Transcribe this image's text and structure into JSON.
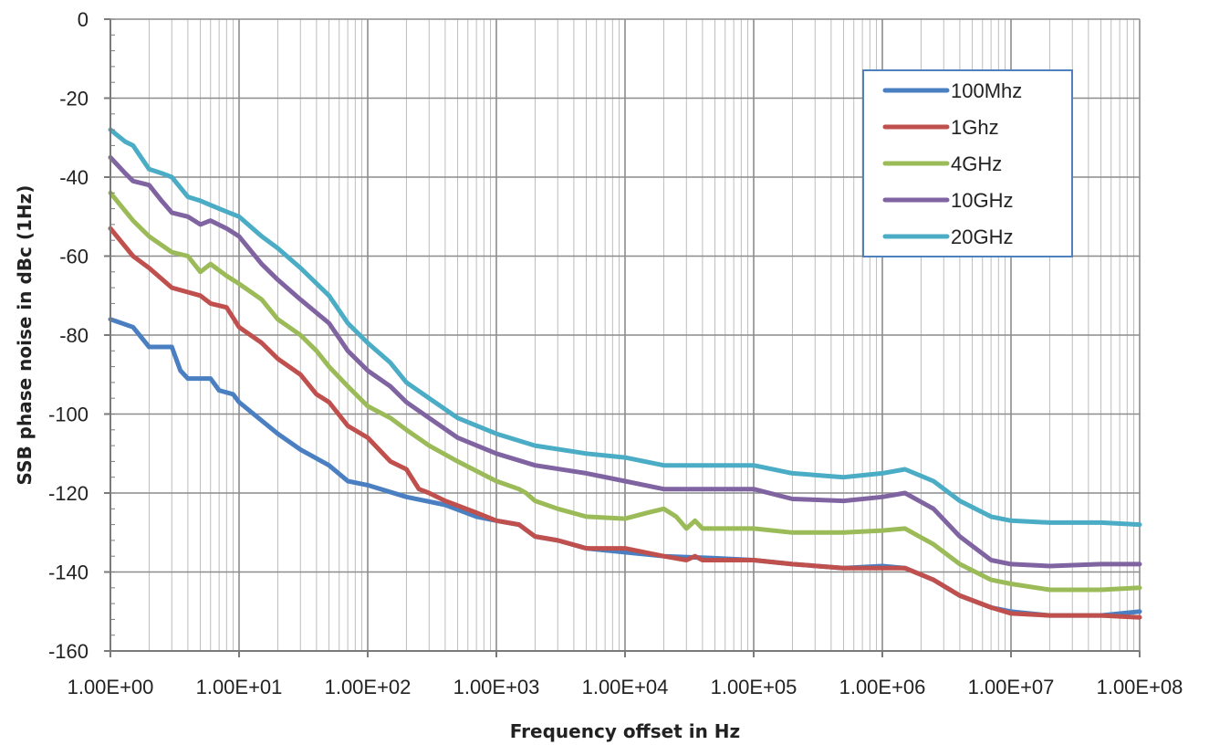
{
  "chart_data": {
    "type": "line",
    "title": "",
    "xlabel": "Frequency offset in Hz",
    "ylabel": "SSB phase noise in dBc  (1Hz)",
    "x_scale": "log",
    "xlim": [
      1,
      100000000
    ],
    "ylim": [
      -160,
      0
    ],
    "x_ticks": [
      1,
      10,
      100,
      1000,
      10000,
      100000,
      1000000,
      10000000,
      100000000
    ],
    "x_tick_labels": [
      "1.00E+00",
      "1.00E+01",
      "1.00E+02",
      "1.00E+03",
      "1.00E+04",
      "1.00E+05",
      "1.00E+06",
      "1.00E+07",
      "1.00E+08"
    ],
    "y_ticks": [
      0,
      -20,
      -40,
      -60,
      -80,
      -100,
      -120,
      -140,
      -160
    ],
    "y_tick_labels": [
      "0",
      "-20",
      "-40",
      "-60",
      "-80",
      "-100",
      "-120",
      "-140",
      "-160"
    ],
    "grid": true,
    "minor_grid": true,
    "legend_position": "top-right",
    "series": [
      {
        "name": "100Mhz",
        "color": "#4a7fc1",
        "points": [
          [
            1,
            -76
          ],
          [
            1.5,
            -78
          ],
          [
            2,
            -83
          ],
          [
            3,
            -83
          ],
          [
            3.5,
            -89
          ],
          [
            4,
            -91
          ],
          [
            6,
            -91
          ],
          [
            7,
            -94
          ],
          [
            9,
            -95
          ],
          [
            10,
            -97
          ],
          [
            20,
            -105
          ],
          [
            30,
            -109
          ],
          [
            50,
            -113
          ],
          [
            70,
            -117
          ],
          [
            100,
            -118
          ],
          [
            200,
            -121
          ],
          [
            400,
            -123
          ],
          [
            700,
            -126
          ],
          [
            1000,
            -127
          ],
          [
            1500,
            -128
          ],
          [
            2000,
            -131
          ],
          [
            3000,
            -132
          ],
          [
            5000,
            -134
          ],
          [
            10000,
            -135
          ],
          [
            20000,
            -136
          ],
          [
            50000,
            -136.5
          ],
          [
            100000,
            -137
          ],
          [
            200000,
            -138
          ],
          [
            500000,
            -139
          ],
          [
            1000000,
            -138.5
          ],
          [
            1500000,
            -139
          ],
          [
            2500000,
            -142
          ],
          [
            4000000,
            -146
          ],
          [
            7000000,
            -149
          ],
          [
            10000000,
            -150
          ],
          [
            20000000,
            -151
          ],
          [
            50000000,
            -151
          ],
          [
            100000000,
            -150
          ]
        ]
      },
      {
        "name": "1Ghz",
        "color": "#c0504d",
        "points": [
          [
            1,
            -53
          ],
          [
            1.5,
            -60
          ],
          [
            2,
            -63
          ],
          [
            3,
            -68
          ],
          [
            5,
            -70
          ],
          [
            6,
            -72
          ],
          [
            8,
            -73
          ],
          [
            10,
            -78
          ],
          [
            15,
            -82
          ],
          [
            20,
            -86
          ],
          [
            30,
            -90
          ],
          [
            40,
            -95
          ],
          [
            50,
            -97
          ],
          [
            70,
            -103
          ],
          [
            100,
            -106
          ],
          [
            150,
            -112
          ],
          [
            200,
            -114
          ],
          [
            250,
            -119
          ],
          [
            300,
            -120
          ],
          [
            400,
            -122
          ],
          [
            700,
            -125
          ],
          [
            1000,
            -127
          ],
          [
            1500,
            -128
          ],
          [
            2000,
            -131
          ],
          [
            3000,
            -132
          ],
          [
            5000,
            -134
          ],
          [
            10000,
            -134
          ],
          [
            20000,
            -136
          ],
          [
            30000,
            -137
          ],
          [
            35000,
            -136
          ],
          [
            40000,
            -137
          ],
          [
            100000,
            -137
          ],
          [
            200000,
            -138
          ],
          [
            500000,
            -139
          ],
          [
            1000000,
            -139
          ],
          [
            1500000,
            -139
          ],
          [
            2500000,
            -142
          ],
          [
            4000000,
            -146
          ],
          [
            7000000,
            -149
          ],
          [
            10000000,
            -150.5
          ],
          [
            20000000,
            -151
          ],
          [
            50000000,
            -151
          ],
          [
            100000000,
            -151.5
          ]
        ]
      },
      {
        "name": "4GHz",
        "color": "#9bbb59",
        "points": [
          [
            1,
            -44
          ],
          [
            1.5,
            -51
          ],
          [
            2,
            -55
          ],
          [
            3,
            -59
          ],
          [
            4,
            -60
          ],
          [
            5,
            -64
          ],
          [
            6,
            -62
          ],
          [
            8,
            -65
          ],
          [
            10,
            -67
          ],
          [
            15,
            -71
          ],
          [
            20,
            -76
          ],
          [
            30,
            -80
          ],
          [
            40,
            -84
          ],
          [
            50,
            -88
          ],
          [
            70,
            -93
          ],
          [
            100,
            -98
          ],
          [
            150,
            -101
          ],
          [
            200,
            -104
          ],
          [
            300,
            -108
          ],
          [
            500,
            -112
          ],
          [
            1000,
            -117
          ],
          [
            1500,
            -119
          ],
          [
            1700,
            -120
          ],
          [
            2000,
            -122
          ],
          [
            3000,
            -124
          ],
          [
            5000,
            -126
          ],
          [
            10000,
            -126.5
          ],
          [
            15000,
            -125
          ],
          [
            20000,
            -124
          ],
          [
            25000,
            -126
          ],
          [
            30000,
            -129
          ],
          [
            35000,
            -127
          ],
          [
            40000,
            -129
          ],
          [
            100000,
            -129
          ],
          [
            200000,
            -130
          ],
          [
            500000,
            -130
          ],
          [
            1000000,
            -129.5
          ],
          [
            1500000,
            -129
          ],
          [
            2500000,
            -133
          ],
          [
            4000000,
            -138
          ],
          [
            7000000,
            -142
          ],
          [
            10000000,
            -143
          ],
          [
            20000000,
            -144.5
          ],
          [
            50000000,
            -144.5
          ],
          [
            100000000,
            -144
          ]
        ]
      },
      {
        "name": "10GHz",
        "color": "#8064a2",
        "points": [
          [
            1,
            -35
          ],
          [
            1.3,
            -39
          ],
          [
            1.5,
            -41
          ],
          [
            2,
            -42
          ],
          [
            2.5,
            -46
          ],
          [
            3,
            -49
          ],
          [
            4,
            -50
          ],
          [
            5,
            -52
          ],
          [
            6,
            -51
          ],
          [
            8,
            -53
          ],
          [
            10,
            -55
          ],
          [
            15,
            -62
          ],
          [
            20,
            -66
          ],
          [
            30,
            -71
          ],
          [
            50,
            -77
          ],
          [
            70,
            -84
          ],
          [
            100,
            -89
          ],
          [
            150,
            -93
          ],
          [
            200,
            -97
          ],
          [
            300,
            -101
          ],
          [
            500,
            -106
          ],
          [
            1000,
            -110
          ],
          [
            2000,
            -113
          ],
          [
            5000,
            -115
          ],
          [
            10000,
            -117
          ],
          [
            20000,
            -119
          ],
          [
            50000,
            -119
          ],
          [
            100000,
            -119
          ],
          [
            200000,
            -121.5
          ],
          [
            500000,
            -122
          ],
          [
            1000000,
            -121
          ],
          [
            1500000,
            -120
          ],
          [
            2500000,
            -124
          ],
          [
            4000000,
            -131
          ],
          [
            7000000,
            -137
          ],
          [
            10000000,
            -138
          ],
          [
            20000000,
            -138.5
          ],
          [
            50000000,
            -138
          ],
          [
            100000000,
            -138
          ]
        ]
      },
      {
        "name": "20GHz",
        "color": "#4bacc6",
        "points": [
          [
            1,
            -28
          ],
          [
            1.3,
            -31
          ],
          [
            1.5,
            -32
          ],
          [
            2,
            -38
          ],
          [
            2.5,
            -39
          ],
          [
            3,
            -40
          ],
          [
            4,
            -45
          ],
          [
            5,
            -46
          ],
          [
            7,
            -48
          ],
          [
            10,
            -50
          ],
          [
            15,
            -55
          ],
          [
            20,
            -58
          ],
          [
            30,
            -63
          ],
          [
            50,
            -70
          ],
          [
            70,
            -77
          ],
          [
            100,
            -82
          ],
          [
            150,
            -87
          ],
          [
            200,
            -92
          ],
          [
            300,
            -96
          ],
          [
            500,
            -101
          ],
          [
            1000,
            -105
          ],
          [
            2000,
            -108
          ],
          [
            5000,
            -110
          ],
          [
            10000,
            -111
          ],
          [
            20000,
            -113
          ],
          [
            50000,
            -113
          ],
          [
            100000,
            -113
          ],
          [
            200000,
            -115
          ],
          [
            500000,
            -116
          ],
          [
            1000000,
            -115
          ],
          [
            1500000,
            -114
          ],
          [
            2500000,
            -117
          ],
          [
            4000000,
            -122
          ],
          [
            7000000,
            -126
          ],
          [
            10000000,
            -127
          ],
          [
            20000000,
            -127.5
          ],
          [
            50000000,
            -127.5
          ],
          [
            100000000,
            -128
          ]
        ]
      }
    ]
  }
}
